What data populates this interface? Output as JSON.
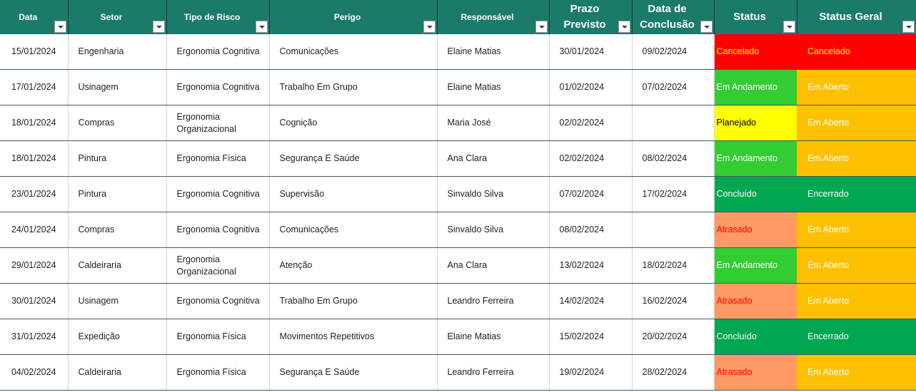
{
  "table": {
    "columns": [
      "Data",
      "Setor",
      "Tipo de Risco",
      "Perigo",
      "Responsável",
      "Prazo Previsto",
      "Data de Conclusão",
      "Status",
      "Status Geral"
    ],
    "rows": [
      [
        "15/01/2024",
        "Engenharia",
        "Ergonomia Cognitiva",
        "Comunicações",
        "Elaine Matias",
        "30/01/2024",
        "09/02/2024",
        "Cancelado",
        "Cancelado"
      ],
      [
        "17/01/2024",
        "Usinagem",
        "Ergonomia Cognitiva",
        "Trabalho Em Grupo",
        "Elaine Matias",
        "01/02/2024",
        "07/02/2024",
        "Em Andamento",
        "Em Aberto"
      ],
      [
        "18/01/2024",
        "Compras",
        "Ergonomia Organizacional",
        "Cognição",
        "Maria José",
        "02/02/2024",
        null,
        "Planejado",
        "Em Aberto"
      ],
      [
        "18/01/2024",
        "Pintura",
        "Ergonomia Física",
        "Segurança E Saúde",
        "Ana Clara",
        "02/02/2024",
        "08/02/2024",
        "Em Andamento",
        "Em Aberto"
      ],
      [
        "23/01/2024",
        "Pintura",
        "Ergonomia Cognitiva",
        "Supervisão",
        "Sinvaldo Silva",
        "07/02/2024",
        "17/02/2024",
        "Concluído",
        "Encerrado"
      ],
      [
        "24/01/2024",
        "Compras",
        "Ergonomia Cognitiva",
        "Comunicações",
        "Sinvaldo Silva",
        "08/02/2024",
        null,
        "Atrasado",
        "Em Aberto"
      ],
      [
        "29/01/2024",
        "Caldeiraria",
        "Ergonomia Organizacional",
        "Atenção",
        "Ana Clara",
        "13/02/2024",
        "18/02/2024",
        "Em Andamento",
        "Em Aberto"
      ],
      [
        "30/01/2024",
        "Usinagem",
        "Ergonomia Cognitiva",
        "Trabalho Em Grupo",
        "Leandro Ferreira",
        "14/02/2024",
        "16/02/2024",
        "Atrasado",
        "Em Aberto"
      ],
      [
        "31/01/2024",
        "Expedição",
        "Ergonomia Física",
        "Movimentos Repetitivos",
        "Elaine Matias",
        "15/02/2024",
        "20/02/2024",
        "Concluído",
        "Encerrado"
      ],
      [
        "04/02/2024",
        "Caldeiraria",
        "Ergonomia Física",
        "Segurança E Saúde",
        "Leandro Ferreira",
        "19/02/2024",
        "28/02/2024",
        "Atrasado",
        "Em Aberto"
      ]
    ],
    "status_colors": {
      "Cancelado": [
        "#ff0000",
        "#ffff00"
      ],
      "Em Andamento": [
        "#33cc33",
        "#ffffff"
      ],
      "Planejado": [
        "#ffff00",
        "#000000"
      ],
      "Concluído": [
        "#00a650",
        "#ffffff"
      ],
      "Atrasado": [
        "#ff9966",
        "#ff0000"
      ],
      "Em Aberto": [
        "#ffc000",
        "#ffffff"
      ],
      "Encerrado": [
        "#00a650",
        "#ffffff"
      ]
    }
  }
}
